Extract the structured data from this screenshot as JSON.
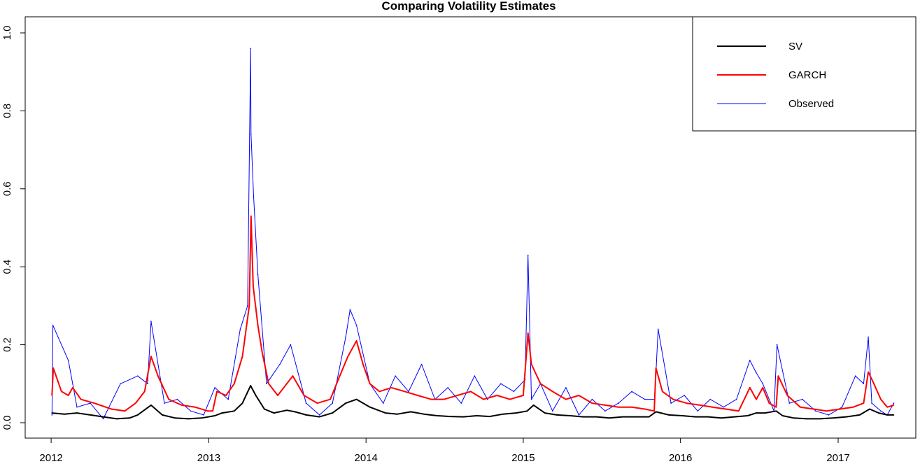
{
  "chart_data": {
    "type": "line",
    "title": "Comparing Volatility Estimates",
    "xlabel": "",
    "ylabel": "",
    "x_ticks": [
      "2012",
      "2013",
      "2014",
      "2015",
      "2016",
      "2017"
    ],
    "y_ticks": [
      "0.0",
      "0.2",
      "0.4",
      "0.6",
      "0.8",
      "1.0"
    ],
    "xlim": [
      "2011-12-01",
      "2017-06-01"
    ],
    "ylim": [
      0,
      1.0
    ],
    "legend_position": "top-right",
    "series": [
      {
        "name": "SV",
        "color": "#000000",
        "x": [
          "2012-01-03",
          "2012-02-01",
          "2012-03-01",
          "2012-04-01",
          "2012-05-01",
          "2012-06-01",
          "2012-07-01",
          "2012-07-20",
          "2012-08-20",
          "2012-09-15",
          "2012-10-15",
          "2012-11-15",
          "2012-12-15",
          "2013-01-15",
          "2013-02-01",
          "2013-03-01",
          "2013-03-20",
          "2013-04-08",
          "2013-04-20",
          "2013-05-10",
          "2013-06-01",
          "2013-07-01",
          "2013-07-20",
          "2013-08-15",
          "2013-09-15",
          "2013-10-15",
          "2013-11-15",
          "2013-12-10",
          "2014-01-10",
          "2014-02-15",
          "2014-03-15",
          "2014-04-15",
          "2014-05-15",
          "2014-06-15",
          "2014-07-15",
          "2014-08-15",
          "2014-09-15",
          "2014-10-15",
          "2014-11-15",
          "2014-12-15",
          "2015-01-10",
          "2015-01-25",
          "2015-02-20",
          "2015-03-20",
          "2015-04-20",
          "2015-05-20",
          "2015-06-20",
          "2015-07-20",
          "2015-08-20",
          "2015-09-20",
          "2015-10-20",
          "2015-11-05",
          "2015-12-05",
          "2016-01-05",
          "2016-02-05",
          "2016-03-05",
          "2016-04-05",
          "2016-05-05",
          "2016-06-05",
          "2016-06-25",
          "2016-07-15",
          "2016-08-10",
          "2016-08-25",
          "2016-09-20",
          "2016-10-20",
          "2016-11-20",
          "2016-12-20",
          "2017-01-20",
          "2017-02-20",
          "2017-03-15",
          "2017-04-05",
          "2017-04-25",
          "2017-05-10"
        ],
        "values": [
          0.025,
          0.022,
          0.025,
          0.02,
          0.015,
          0.01,
          0.012,
          0.02,
          0.045,
          0.02,
          0.012,
          0.01,
          0.012,
          0.018,
          0.025,
          0.03,
          0.05,
          0.095,
          0.07,
          0.035,
          0.025,
          0.032,
          0.028,
          0.02,
          0.015,
          0.025,
          0.05,
          0.06,
          0.04,
          0.025,
          0.022,
          0.028,
          0.022,
          0.018,
          0.016,
          0.015,
          0.018,
          0.016,
          0.022,
          0.025,
          0.03,
          0.045,
          0.025,
          0.02,
          0.018,
          0.015,
          0.015,
          0.012,
          0.015,
          0.015,
          0.015,
          0.028,
          0.02,
          0.018,
          0.015,
          0.015,
          0.012,
          0.015,
          0.018,
          0.025,
          0.025,
          0.03,
          0.018,
          0.012,
          0.01,
          0.01,
          0.012,
          0.015,
          0.02,
          0.035,
          0.025,
          0.02,
          0.02
        ]
      },
      {
        "name": "GARCH",
        "color": "#ff0000",
        "x": [
          "2012-01-03",
          "2012-01-06",
          "2012-01-25",
          "2012-02-10",
          "2012-02-20",
          "2012-03-10",
          "2012-04-10",
          "2012-05-20",
          "2012-06-20",
          "2012-07-15",
          "2012-08-05",
          "2012-08-20",
          "2012-09-05",
          "2012-09-30",
          "2012-10-30",
          "2012-11-30",
          "2012-12-30",
          "2013-01-10",
          "2013-01-20",
          "2013-02-10",
          "2013-03-01",
          "2013-03-20",
          "2013-04-05",
          "2013-04-09",
          "2013-04-14",
          "2013-04-25",
          "2013-05-05",
          "2013-05-20",
          "2013-06-10",
          "2013-07-01",
          "2013-07-15",
          "2013-08-10",
          "2013-09-10",
          "2013-10-10",
          "2013-11-01",
          "2013-11-20",
          "2013-12-10",
          "2013-12-25",
          "2014-01-10",
          "2014-02-01",
          "2014-03-01",
          "2014-04-01",
          "2014-05-01",
          "2014-06-01",
          "2014-07-01",
          "2014-08-01",
          "2014-09-01",
          "2014-10-01",
          "2014-11-01",
          "2014-12-01",
          "2015-01-01",
          "2015-01-12",
          "2015-01-20",
          "2015-02-10",
          "2015-03-10",
          "2015-04-10",
          "2015-05-10",
          "2015-06-10",
          "2015-07-10",
          "2015-08-10",
          "2015-09-10",
          "2015-10-10",
          "2015-11-01",
          "2015-11-05",
          "2015-11-20",
          "2015-12-15",
          "2016-01-15",
          "2016-02-15",
          "2016-03-15",
          "2016-04-15",
          "2016-05-15",
          "2016-06-10",
          "2016-06-25",
          "2016-07-10",
          "2016-07-25",
          "2016-08-10",
          "2016-08-15",
          "2016-09-05",
          "2016-10-05",
          "2016-11-05",
          "2016-12-05",
          "2017-01-05",
          "2017-02-05",
          "2017-03-01",
          "2017-03-12",
          "2017-03-25",
          "2017-04-10",
          "2017-04-25",
          "2017-05-10"
        ],
        "values": [
          0.07,
          0.14,
          0.08,
          0.07,
          0.09,
          0.06,
          0.05,
          0.035,
          0.03,
          0.05,
          0.08,
          0.17,
          0.12,
          0.06,
          0.045,
          0.04,
          0.03,
          0.03,
          0.08,
          0.07,
          0.1,
          0.17,
          0.3,
          0.53,
          0.35,
          0.25,
          0.18,
          0.1,
          0.07,
          0.1,
          0.12,
          0.07,
          0.05,
          0.06,
          0.12,
          0.17,
          0.21,
          0.15,
          0.1,
          0.08,
          0.09,
          0.08,
          0.07,
          0.06,
          0.06,
          0.07,
          0.08,
          0.06,
          0.07,
          0.06,
          0.07,
          0.23,
          0.15,
          0.1,
          0.08,
          0.06,
          0.07,
          0.05,
          0.045,
          0.04,
          0.04,
          0.035,
          0.03,
          0.14,
          0.08,
          0.06,
          0.05,
          0.045,
          0.04,
          0.035,
          0.03,
          0.09,
          0.06,
          0.09,
          0.05,
          0.04,
          0.12,
          0.07,
          0.04,
          0.035,
          0.03,
          0.035,
          0.04,
          0.05,
          0.13,
          0.1,
          0.06,
          0.04,
          0.045
        ]
      },
      {
        "name": "Observed",
        "color": "#0000ff",
        "x": [
          "2012-01-03",
          "2012-01-05",
          "2012-02-10",
          "2012-03-01",
          "2012-04-01",
          "2012-05-01",
          "2012-06-10",
          "2012-07-20",
          "2012-08-12",
          "2012-08-20",
          "2012-09-20",
          "2012-10-20",
          "2012-11-20",
          "2012-12-20",
          "2013-01-15",
          "2013-02-15",
          "2013-03-15",
          "2013-04-01",
          "2013-04-08",
          "2013-04-09",
          "2013-04-15",
          "2013-04-25",
          "2013-05-15",
          "2013-06-15",
          "2013-07-10",
          "2013-08-15",
          "2013-09-15",
          "2013-10-15",
          "2013-11-15",
          "2013-11-25",
          "2013-12-10",
          "2014-01-10",
          "2014-02-10",
          "2014-03-10",
          "2014-04-10",
          "2014-05-10",
          "2014-06-10",
          "2014-07-10",
          "2014-08-10",
          "2014-09-10",
          "2014-10-10",
          "2014-11-10",
          "2014-12-10",
          "2015-01-05",
          "2015-01-12",
          "2015-01-20",
          "2015-02-10",
          "2015-03-10",
          "2015-04-10",
          "2015-05-10",
          "2015-06-10",
          "2015-07-10",
          "2015-08-10",
          "2015-09-10",
          "2015-10-10",
          "2015-11-02",
          "2015-11-10",
          "2015-12-10",
          "2016-01-10",
          "2016-02-10",
          "2016-03-10",
          "2016-04-10",
          "2016-05-10",
          "2016-06-10",
          "2016-06-24",
          "2016-07-10",
          "2016-08-05",
          "2016-08-12",
          "2016-09-10",
          "2016-10-10",
          "2016-11-10",
          "2016-12-10",
          "2017-01-10",
          "2017-02-10",
          "2017-03-01",
          "2017-03-12",
          "2017-03-20",
          "2017-04-10",
          "2017-04-25",
          "2017-05-10"
        ],
        "values": [
          0.02,
          0.25,
          0.16,
          0.04,
          0.05,
          0.01,
          0.1,
          0.12,
          0.1,
          0.26,
          0.05,
          0.06,
          0.03,
          0.02,
          0.09,
          0.06,
          0.24,
          0.3,
          0.96,
          0.74,
          0.58,
          0.38,
          0.1,
          0.15,
          0.2,
          0.05,
          0.02,
          0.05,
          0.22,
          0.29,
          0.25,
          0.1,
          0.05,
          0.12,
          0.08,
          0.15,
          0.06,
          0.09,
          0.05,
          0.12,
          0.06,
          0.1,
          0.08,
          0.11,
          0.43,
          0.06,
          0.1,
          0.03,
          0.09,
          0.02,
          0.06,
          0.03,
          0.05,
          0.08,
          0.06,
          0.06,
          0.24,
          0.05,
          0.07,
          0.03,
          0.06,
          0.04,
          0.06,
          0.16,
          0.13,
          0.1,
          0.03,
          0.2,
          0.05,
          0.06,
          0.03,
          0.02,
          0.04,
          0.12,
          0.1,
          0.22,
          0.05,
          0.03,
          0.02,
          0.05
        ]
      }
    ]
  }
}
